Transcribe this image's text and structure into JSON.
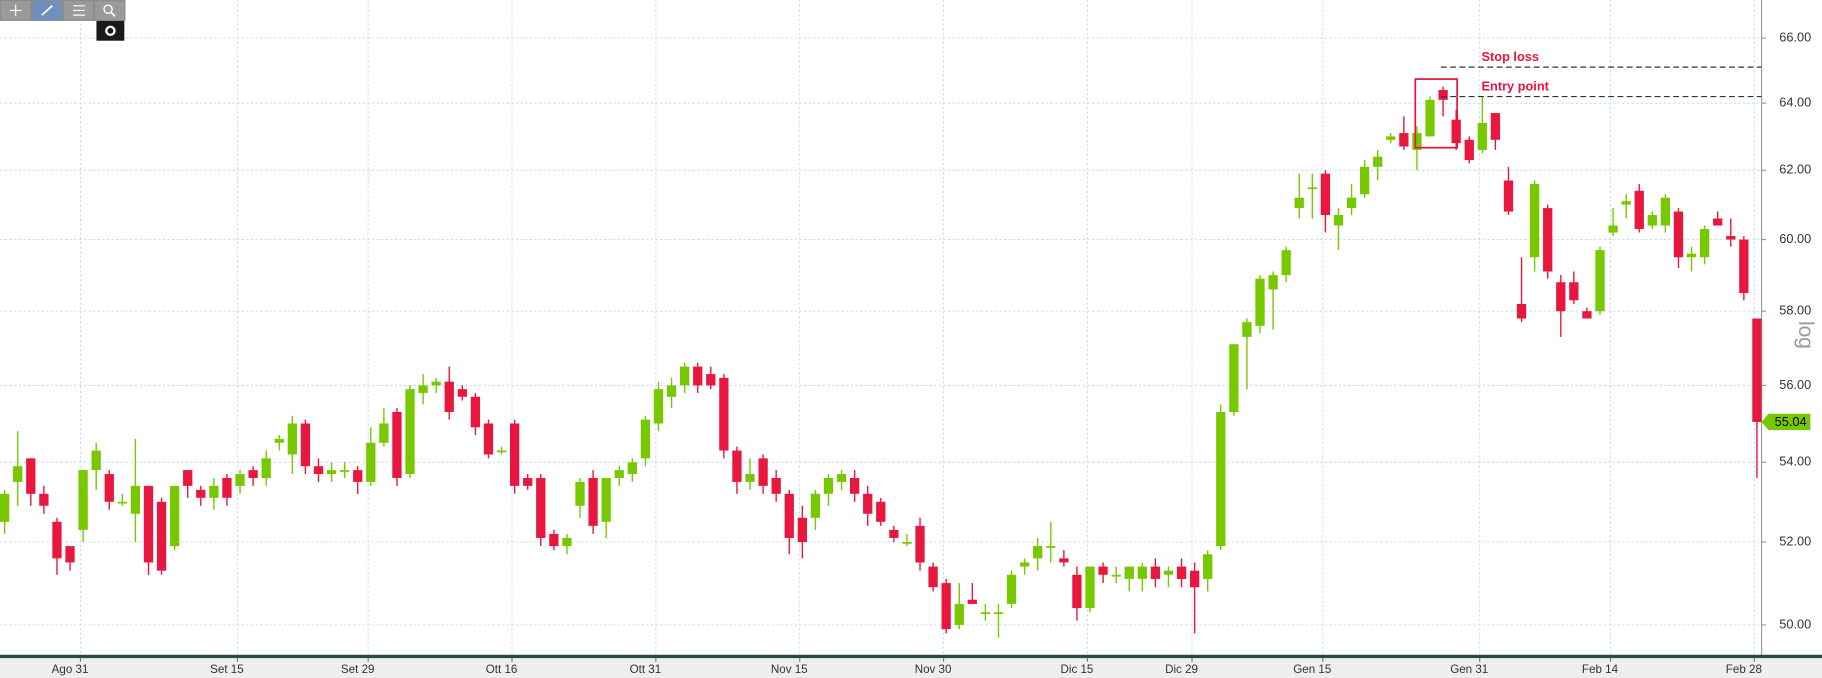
{
  "chart_data": {
    "type": "candlestick",
    "categories": [
      null,
      null,
      null,
      null,
      null,
      "Ago 31",
      null,
      null,
      null,
      null,
      null,
      null,
      null,
      null,
      null,
      null,
      null,
      "Set 15",
      null,
      null,
      null,
      null,
      null,
      null,
      null,
      null,
      null,
      "Set 29",
      null,
      null,
      null,
      null,
      null,
      null,
      null,
      null,
      null,
      null,
      "Ott 16",
      null,
      null,
      null,
      null,
      null,
      null,
      null,
      null,
      null,
      null,
      "Ott 31",
      null,
      null,
      null,
      null,
      null,
      null,
      null,
      null,
      null,
      null,
      "Nov 15",
      null,
      null,
      null,
      null,
      null,
      null,
      null,
      null,
      null,
      null,
      "Nov 30",
      null,
      null,
      null,
      null,
      null,
      null,
      null,
      null,
      null,
      null,
      "Dic 15",
      null,
      null,
      null,
      null,
      null,
      null,
      null,
      "Dic 29",
      null,
      null,
      null,
      null,
      null,
      null,
      null,
      null,
      null,
      "Gen 15",
      null,
      null,
      null,
      null,
      null,
      null,
      null,
      null,
      null,
      null,
      null,
      "Gen 31",
      null,
      null,
      null,
      null,
      null,
      null,
      null,
      null,
      null,
      "Feb 14",
      null,
      null,
      null,
      null,
      null,
      null,
      null,
      null,
      null,
      null,
      "Feb 28",
      null
    ],
    "open": [
      52.5,
      53.5,
      54.1,
      53.2,
      52.5,
      51.9,
      52.3,
      53.8,
      53.7,
      53.0,
      52.7,
      53.4,
      53.0,
      51.9,
      53.8,
      53.3,
      53.1,
      53.6,
      53.4,
      53.8,
      53.6,
      54.5,
      54.2,
      55.0,
      53.9,
      53.7,
      53.8,
      53.8,
      53.5,
      54.5,
      55.3,
      53.7,
      55.8,
      56.0,
      56.1,
      55.9,
      55.7,
      55.0,
      54.3,
      55.0,
      53.6,
      53.6,
      52.2,
      51.9,
      52.9,
      53.6,
      52.5,
      53.6,
      53.7,
      54.1,
      55.0,
      55.7,
      56.0,
      56.5,
      56.3,
      56.2,
      54.3,
      53.5,
      54.1,
      53.6,
      53.2,
      52.6,
      52.6,
      53.2,
      53.5,
      53.6,
      53.2,
      53.0,
      52.3,
      52.0,
      52.4,
      51.4,
      51.0,
      50.0,
      50.6,
      50.3,
      50.3,
      50.5,
      51.4,
      51.6,
      51.9,
      51.6,
      51.2,
      50.4,
      51.4,
      51.2,
      51.1,
      51.1,
      51.4,
      51.2,
      51.4,
      51.3,
      51.1,
      51.9,
      55.3,
      57.3,
      57.6,
      58.6,
      59.0,
      60.9,
      61.5,
      61.9,
      60.4,
      60.9,
      61.3,
      62.1,
      62.9,
      63.1,
      62.6,
      63.0,
      64.4,
      63.5,
      62.9,
      62.6,
      63.7,
      61.7,
      58.2,
      59.5,
      60.9,
      58.8,
      58.8,
      58.0,
      58.0,
      60.2,
      61.0,
      61.4,
      60.4,
      60.4,
      60.8,
      59.5,
      59.5,
      60.6,
      60.1,
      60.0,
      57.8
    ],
    "high": [
      53.3,
      54.8,
      54.1,
      53.4,
      52.6,
      51.9,
      53.8,
      54.5,
      53.8,
      53.2,
      54.6,
      53.4,
      53.1,
      53.4,
      53.8,
      53.4,
      53.6,
      53.7,
      53.8,
      53.9,
      54.3,
      54.7,
      55.2,
      55.1,
      54.1,
      54.0,
      54.0,
      53.9,
      54.9,
      55.4,
      55.4,
      56.0,
      56.3,
      56.2,
      56.5,
      56.0,
      55.8,
      55.1,
      54.4,
      55.1,
      53.7,
      53.7,
      52.3,
      52.2,
      53.6,
      53.8,
      53.6,
      53.9,
      54.1,
      55.2,
      56.1,
      56.2,
      56.6,
      56.6,
      56.5,
      56.3,
      54.4,
      54.1,
      54.2,
      53.8,
      53.3,
      52.9,
      53.3,
      53.7,
      53.8,
      53.8,
      53.4,
      53.1,
      52.4,
      52.2,
      52.6,
      51.5,
      51.1,
      51.0,
      51.0,
      50.5,
      50.5,
      51.3,
      51.6,
      52.1,
      52.5,
      51.8,
      51.4,
      51.4,
      51.5,
      51.4,
      51.4,
      51.5,
      51.6,
      51.4,
      51.6,
      51.5,
      51.8,
      55.5,
      57.1,
      57.8,
      59.0,
      59.1,
      59.8,
      61.9,
      61.9,
      62.0,
      60.9,
      61.6,
      62.3,
      62.6,
      63.1,
      63.6,
      63.3,
      64.2,
      64.5,
      63.8,
      63.0,
      64.2,
      63.7,
      62.1,
      59.5,
      61.7,
      61.0,
      59.0,
      59.1,
      58.1,
      59.8,
      60.9,
      61.3,
      61.6,
      60.8,
      61.3,
      60.9,
      59.8,
      60.4,
      60.8,
      60.6,
      60.1,
      57.8
    ],
    "low": [
      52.2,
      52.9,
      52.9,
      52.7,
      51.2,
      51.3,
      52.0,
      53.3,
      52.8,
      52.9,
      52.0,
      51.2,
      51.2,
      51.8,
      53.1,
      52.9,
      52.8,
      52.9,
      53.2,
      53.4,
      53.4,
      54.3,
      53.7,
      53.7,
      53.5,
      53.5,
      53.6,
      53.2,
      53.4,
      54.4,
      53.4,
      53.6,
      55.5,
      55.8,
      55.1,
      55.6,
      54.7,
      54.1,
      54.2,
      53.2,
      53.3,
      51.9,
      51.8,
      51.7,
      52.6,
      52.2,
      52.1,
      53.4,
      53.5,
      53.9,
      54.8,
      55.4,
      55.8,
      55.8,
      55.9,
      54.1,
      53.2,
      53.3,
      53.2,
      53.0,
      51.7,
      51.6,
      52.3,
      52.9,
      53.3,
      53.0,
      52.4,
      52.4,
      52.0,
      51.9,
      51.3,
      50.8,
      49.8,
      49.9,
      50.5,
      50.1,
      49.7,
      50.4,
      51.2,
      51.3,
      51.5,
      51.4,
      50.1,
      50.3,
      51.0,
      51.0,
      50.8,
      50.8,
      50.9,
      50.9,
      50.9,
      49.8,
      50.8,
      51.8,
      55.2,
      55.9,
      57.4,
      57.5,
      58.8,
      60.6,
      60.6,
      60.2,
      59.7,
      60.7,
      61.2,
      61.7,
      62.8,
      62.6,
      62.0,
      63.0,
      63.6,
      62.6,
      62.2,
      62.5,
      62.6,
      60.7,
      57.7,
      59.1,
      58.9,
      57.3,
      58.2,
      57.8,
      57.9,
      60.1,
      60.6,
      60.2,
      60.3,
      60.2,
      59.2,
      59.1,
      59.3,
      60.4,
      59.8,
      58.3,
      53.6
    ],
    "close": [
      53.2,
      53.9,
      53.2,
      52.9,
      51.6,
      51.5,
      53.8,
      54.3,
      53.0,
      53.0,
      53.4,
      51.5,
      51.3,
      53.4,
      53.4,
      53.1,
      53.4,
      53.1,
      53.7,
      53.6,
      54.1,
      54.6,
      55.0,
      53.9,
      53.7,
      53.8,
      53.8,
      53.5,
      54.5,
      55.0,
      53.6,
      55.9,
      56.0,
      56.1,
      55.3,
      55.7,
      54.9,
      54.2,
      54.3,
      53.4,
      53.4,
      52.1,
      51.9,
      52.1,
      53.5,
      52.4,
      53.6,
      53.8,
      54.0,
      55.1,
      55.9,
      56.0,
      56.5,
      56.0,
      56.0,
      54.3,
      53.5,
      53.7,
      53.4,
      53.2,
      52.1,
      52.0,
      53.2,
      53.6,
      53.7,
      53.2,
      52.7,
      52.5,
      52.1,
      52.0,
      51.5,
      50.9,
      49.9,
      50.5,
      50.5,
      50.3,
      50.3,
      51.2,
      51.5,
      51.9,
      51.9,
      51.5,
      50.4,
      51.4,
      51.2,
      51.2,
      51.4,
      51.4,
      51.1,
      51.3,
      51.1,
      50.9,
      51.7,
      55.3,
      57.1,
      57.7,
      58.9,
      59.0,
      59.7,
      61.2,
      61.5,
      60.7,
      60.7,
      61.2,
      62.1,
      62.4,
      63.0,
      62.7,
      63.1,
      64.1,
      64.1,
      62.8,
      62.3,
      63.4,
      62.9,
      60.8,
      57.8,
      61.6,
      59.1,
      58.0,
      58.3,
      57.8,
      59.7,
      60.4,
      61.1,
      60.3,
      60.7,
      61.2,
      59.5,
      59.6,
      60.3,
      60.4,
      60.0,
      58.5,
      55.04
    ],
    "up_color": "#78c800",
    "down_color": "#e8173f",
    "ylim": [
      49.3,
      67.2
    ],
    "yticks": [
      {
        "value": 50,
        "label": "50.00"
      },
      {
        "value": 52,
        "label": "52.00"
      },
      {
        "value": 54,
        "label": "54.00"
      },
      {
        "value": 56,
        "label": "56.00"
      },
      {
        "value": 58,
        "label": "58.00"
      },
      {
        "value": 60,
        "label": "60.00"
      },
      {
        "value": 62,
        "label": "62.00"
      },
      {
        "value": 64,
        "label": "64.00"
      },
      {
        "value": 66,
        "label": "66.00"
      }
    ],
    "log_scale": true,
    "scale_label": "log",
    "grid": true,
    "last_price": 55.04,
    "annotations": [
      {
        "text": "Stop loss",
        "value": 65.1
      },
      {
        "text": "Entry point",
        "value": 64.2
      }
    ]
  }
}
